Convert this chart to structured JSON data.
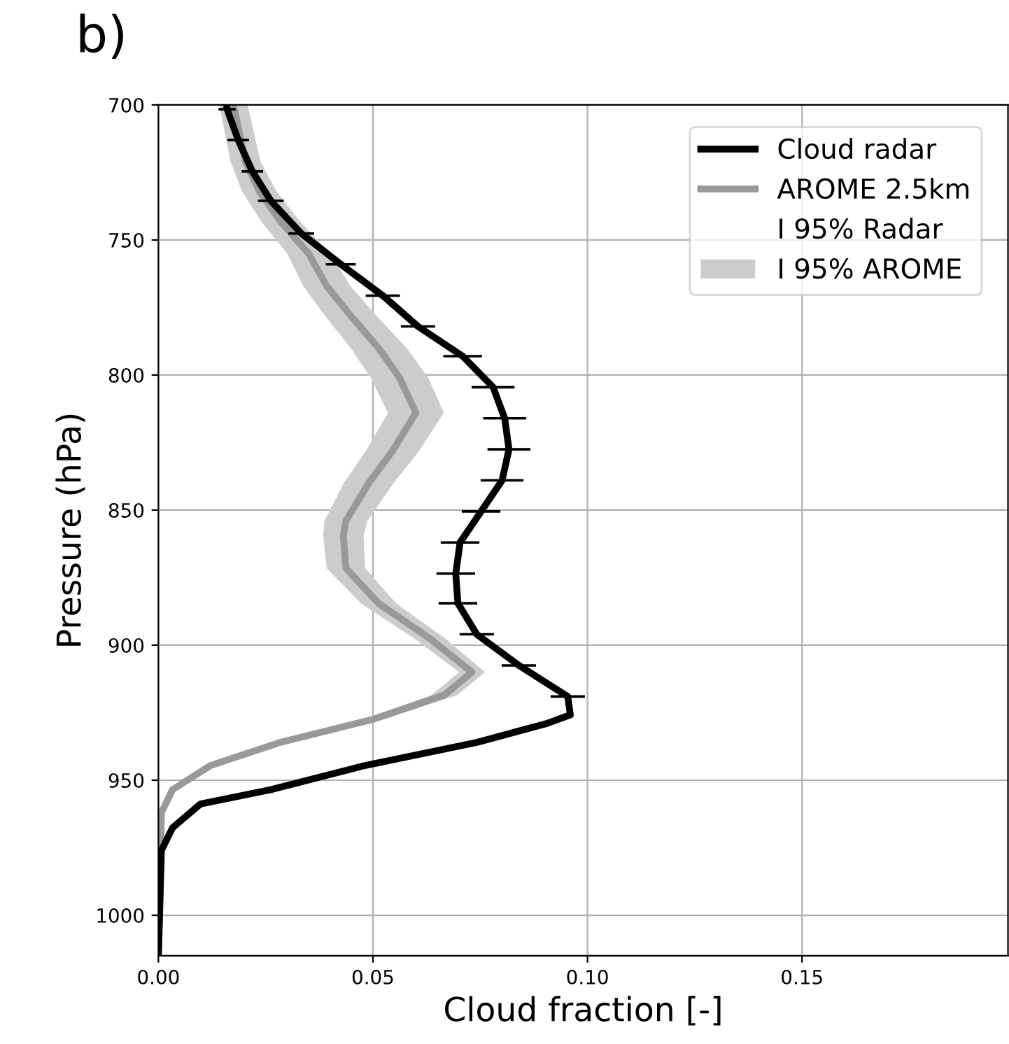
{
  "chart_data": {
    "type": "line",
    "orientation": "horizontal",
    "title": "b)",
    "xlabel": "Cloud fraction [-]",
    "ylabel": "Pressure (hPa)",
    "xlim": [
      0,
      0.198
    ],
    "xticks": [
      {
        "value": 0,
        "label": "0.00"
      },
      {
        "value": 0.05,
        "label": "0.05"
      },
      {
        "value": 0.1,
        "label": "0.10"
      },
      {
        "value": 0.15,
        "label": "0.15"
      }
    ],
    "ylim": [
      1015,
      700
    ],
    "yticks": [
      700,
      750,
      800,
      850,
      900,
      950,
      1000
    ],
    "grid": true,
    "legend": "top right",
    "line_style": "solid",
    "marker": "none",
    "series": [
      {
        "name": "Cloud radar",
        "color": "#000000",
        "x": [
          700,
          701.6,
          713,
          724.6,
          735.5,
          747.6,
          759,
          770.6,
          782,
          793,
          804.5,
          816,
          827.5,
          839,
          850.5,
          862,
          873.5,
          884.5,
          896,
          907.5,
          919,
          925.8,
          929,
          936,
          944.6,
          953.5,
          958.8,
          967.6,
          976,
          1015
        ],
        "values": [
          0.0159,
          0.016,
          0.0186,
          0.0219,
          0.0262,
          0.0333,
          0.0425,
          0.0523,
          0.0605,
          0.0709,
          0.078,
          0.0807,
          0.0817,
          0.0801,
          0.0752,
          0.0703,
          0.0693,
          0.0698,
          0.0742,
          0.084,
          0.0954,
          0.096,
          0.0905,
          0.0742,
          0.048,
          0.0262,
          0.0098,
          0.0033,
          0.0007,
          0
        ],
        "errors": [
          null,
          0.002,
          0.0025,
          0.0025,
          0.003,
          0.003,
          0.0035,
          0.004,
          0.004,
          0.0045,
          0.005,
          0.005,
          0.005,
          0.005,
          0.0045,
          0.0045,
          0.0045,
          0.0045,
          0.004,
          0.004,
          0.004,
          null,
          null,
          null,
          null,
          null,
          null,
          null,
          null,
          null
        ]
      },
      {
        "name": "AROME 2.5km",
        "color": "#999999",
        "x": [
          700,
          721,
          732,
          743,
          755,
          767,
          778,
          790,
          801,
          814,
          828,
          840,
          854,
          859.5,
          871.5,
          884.5,
          897.6,
          910,
          918.5,
          927.4,
          936,
          944.6,
          953.5,
          962,
          1015
        ],
        "values": [
          0.0175,
          0.0203,
          0.0235,
          0.0284,
          0.035,
          0.0392,
          0.0448,
          0.0513,
          0.0562,
          0.06,
          0.0546,
          0.049,
          0.0437,
          0.0431,
          0.0437,
          0.0513,
          0.0633,
          0.0731,
          0.0666,
          0.0502,
          0.0284,
          0.0121,
          0.0033,
          0.0007,
          0
        ],
        "lower": [
          0.0142,
          0.0168,
          0.0195,
          0.0239,
          0.03,
          0.0337,
          0.0388,
          0.0448,
          0.0495,
          0.0535,
          0.0484,
          0.0432,
          0.0387,
          0.0384,
          0.0392,
          0.0472,
          0.0597,
          0.0701,
          0.0636,
          0.0477,
          0.0264,
          0.0106,
          0.0023,
          0.0002,
          0
        ],
        "upper": [
          0.0208,
          0.0238,
          0.0275,
          0.0329,
          0.04,
          0.0447,
          0.0508,
          0.0578,
          0.0629,
          0.0665,
          0.0608,
          0.0548,
          0.0487,
          0.0478,
          0.0482,
          0.0554,
          0.0669,
          0.0761,
          0.0696,
          0.0527,
          0.0304,
          0.0136,
          0.0043,
          0.0012,
          0
        ]
      },
      {
        "name": "I 95% Radar",
        "type": "scatter",
        "marker": "none"
      },
      {
        "name": "I 95% AROME",
        "type": "area",
        "color": "#cccccc"
      }
    ]
  }
}
